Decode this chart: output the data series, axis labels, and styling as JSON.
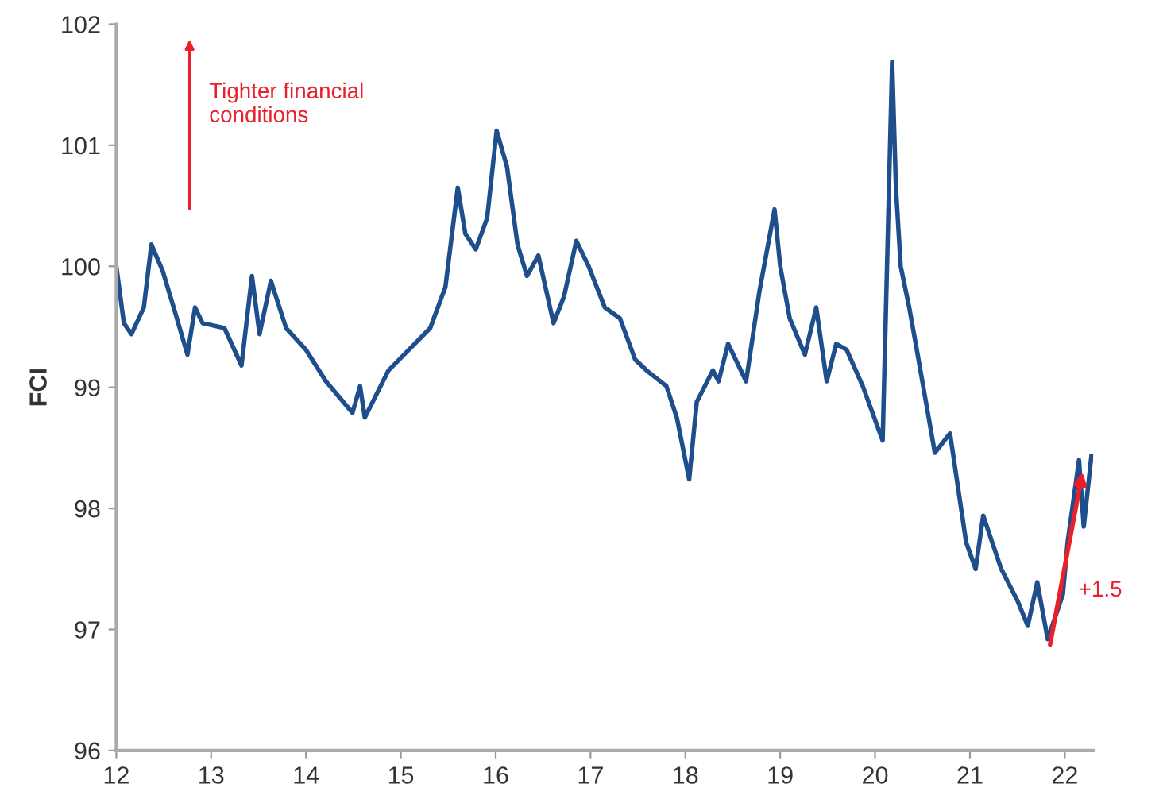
{
  "chart_data": {
    "type": "line",
    "ylabel": "FCI",
    "x": [
      12.0,
      12.08,
      12.16,
      12.29,
      12.37,
      12.49,
      12.62,
      12.75,
      12.83,
      12.91,
      13.14,
      13.32,
      13.43,
      13.51,
      13.63,
      13.79,
      14.0,
      14.21,
      14.49,
      14.57,
      14.62,
      14.87,
      15.31,
      15.47,
      15.6,
      15.68,
      15.79,
      15.91,
      16.01,
      16.12,
      16.23,
      16.33,
      16.45,
      16.61,
      16.72,
      16.85,
      16.98,
      17.15,
      17.31,
      17.47,
      17.59,
      17.8,
      17.91,
      18.04,
      18.12,
      18.29,
      18.35,
      18.45,
      18.64,
      18.78,
      18.94,
      19.0,
      19.1,
      19.26,
      19.38,
      19.49,
      19.59,
      19.7,
      19.87,
      20.08,
      20.18,
      20.22,
      20.27,
      20.36,
      20.44,
      20.63,
      20.79,
      20.96,
      21.06,
      21.14,
      21.33,
      21.5,
      21.61,
      21.71,
      21.82,
      21.98,
      22.03,
      22.15,
      22.2,
      22.28
    ],
    "series": [
      {
        "color": "#1f4e8c",
        "values": [
          100.0,
          99.53,
          99.44,
          99.66,
          100.18,
          99.96,
          99.62,
          99.27,
          99.66,
          99.53,
          99.49,
          99.18,
          99.92,
          99.44,
          99.88,
          99.49,
          99.31,
          99.05,
          98.79,
          99.01,
          98.75,
          99.14,
          99.49,
          99.83,
          100.65,
          100.27,
          100.14,
          100.4,
          101.12,
          100.82,
          100.18,
          99.92,
          100.09,
          99.53,
          99.75,
          100.21,
          100.0,
          99.66,
          99.57,
          99.23,
          99.14,
          99.01,
          98.75,
          98.24,
          98.88,
          99.14,
          99.05,
          99.36,
          99.05,
          99.79,
          100.47,
          100.0,
          99.57,
          99.27,
          99.66,
          99.05,
          99.36,
          99.31,
          99.01,
          98.56,
          101.69,
          100.65,
          100.0,
          99.66,
          99.31,
          98.46,
          98.62,
          97.72,
          97.5,
          97.94,
          97.5,
          97.24,
          97.03,
          97.39,
          96.92,
          97.29,
          97.72,
          98.4,
          97.85,
          98.43
        ]
      }
    ],
    "xlim": [
      12,
      22.3
    ],
    "xticks": [
      12,
      13,
      14,
      15,
      16,
      17,
      18,
      19,
      20,
      21,
      22
    ],
    "ylim": [
      96,
      102
    ],
    "yticks": [
      96,
      97,
      98,
      99,
      100,
      101,
      102
    ],
    "grid": false,
    "legend": false,
    "marker": "none",
    "line_style": "solid",
    "annotations": [
      "Tighter financial conditions",
      "+1.5"
    ]
  }
}
